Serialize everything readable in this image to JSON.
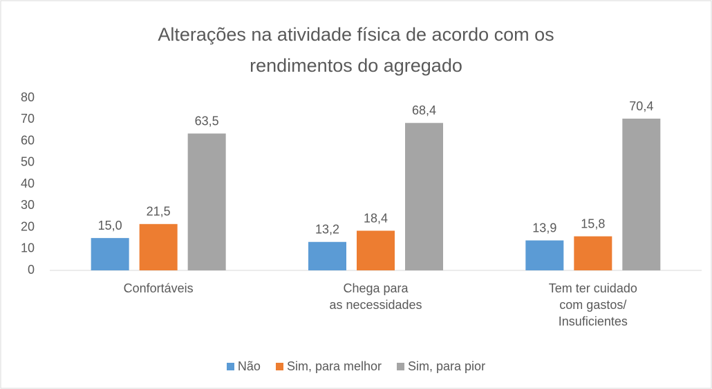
{
  "chart_data": {
    "type": "bar",
    "title": "Alterações na atividade física de acordo com os\nrendimentos do agregado",
    "categories": [
      "Confortáveis",
      "Chega para\nas necessidades",
      "Tem ter cuidado\ncom gastos/\nInsuficientes"
    ],
    "series": [
      {
        "name": "Não",
        "color": "#5b9bd5",
        "values": [
          15.0,
          13.2,
          13.9
        ],
        "value_labels": [
          "15,0",
          "13,2",
          "13,9"
        ]
      },
      {
        "name": "Sim, para melhor",
        "color": "#ed7d31",
        "values": [
          21.5,
          18.4,
          15.8
        ],
        "value_labels": [
          "21,5",
          "18,4",
          "15,8"
        ]
      },
      {
        "name": "Sim, para pior",
        "color": "#a5a5a5",
        "values": [
          63.5,
          68.4,
          70.4
        ],
        "value_labels": [
          "63,5",
          "68,4",
          "70,4"
        ]
      }
    ],
    "ylim": [
      0,
      80
    ],
    "yticks": [
      0,
      10,
      20,
      30,
      40,
      50,
      60,
      70,
      80
    ],
    "grid": false,
    "legend": "bottom"
  }
}
